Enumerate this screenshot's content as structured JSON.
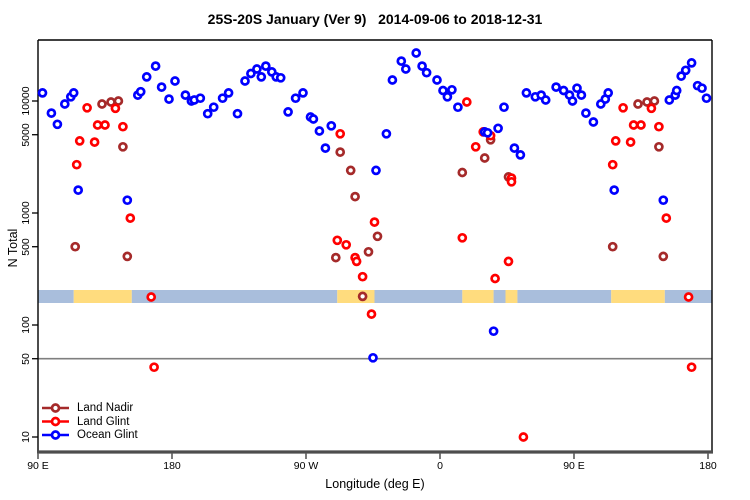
{
  "title": "25S-20S January (Ver 9)   2014-09-06 to 2018-12-31",
  "axes": {
    "x_label": "Longitude (deg E)",
    "y_label": "N Total",
    "x_ticks": [
      "90 E",
      "180",
      "90 W",
      "0",
      "90 E",
      "180"
    ],
    "y_ticks": [
      "10",
      "50",
      "100",
      "500",
      "1000",
      "5000",
      "10000"
    ]
  },
  "legend": {
    "items": [
      {
        "label": "Land Nadir",
        "color": "#A52A2A"
      },
      {
        "label": "Land Glint",
        "color": "#FF0000"
      },
      {
        "label": "Ocean Glint",
        "color": "#0000FF"
      }
    ]
  },
  "colors": {
    "background": "#ffffff",
    "box": "#000000",
    "bottom_axis": "#4d4d4d",
    "reference_line": "#7f7f7f",
    "band_ocean": "#A9BEDC",
    "band_land": "#FFDC7E"
  },
  "chart_data": {
    "type": "scatter",
    "title": "25S-20S January (Ver 9)   2014-09-06 to 2018-12-31",
    "xlabel": "Longitude (deg E)",
    "ylabel": "N Total",
    "x_axis": {
      "note": "x values are degrees along the axis starting at 90E and wrapping eastward; 0=90E, 90=180, 180=90W, 270=0, 360=90E, 450=180",
      "tick_positions": [
        0,
        90,
        180,
        270,
        360,
        450
      ],
      "tick_labels": [
        "90 E",
        "180",
        "90 W",
        "0",
        "90 E",
        "180"
      ],
      "range": [
        0,
        453
      ]
    },
    "y_axis": {
      "scale": "log",
      "ticks": [
        10,
        50,
        100,
        500,
        1000,
        5000,
        10000
      ],
      "range": [
        7,
        35000
      ]
    },
    "reference_line": {
      "y": 50,
      "color": "#7f7f7f"
    },
    "land_ocean_band": {
      "n_center": 175,
      "ocean_color": "#A9BEDC",
      "land_color": "#FFDC7E",
      "segments": [
        {
          "from": 0,
          "to": 24,
          "surface": "ocean"
        },
        {
          "from": 24,
          "to": 63,
          "surface": "land"
        },
        {
          "from": 63,
          "to": 201,
          "surface": "ocean"
        },
        {
          "from": 201,
          "to": 226,
          "surface": "land"
        },
        {
          "from": 226,
          "to": 285,
          "surface": "ocean"
        },
        {
          "from": 285,
          "to": 306,
          "surface": "land"
        },
        {
          "from": 306,
          "to": 314,
          "surface": "ocean"
        },
        {
          "from": 314,
          "to": 322,
          "surface": "land"
        },
        {
          "from": 322,
          "to": 385,
          "surface": "ocean"
        },
        {
          "from": 385,
          "to": 421,
          "surface": "land"
        },
        {
          "from": 421,
          "to": 453,
          "surface": "ocean"
        }
      ]
    },
    "series": [
      {
        "name": "Land Nadir",
        "color": "#A52A2A",
        "points": [
          [
            25,
            500
          ],
          [
            43,
            9400
          ],
          [
            49,
            9800
          ],
          [
            54,
            10000
          ],
          [
            57,
            3900
          ],
          [
            60,
            410
          ],
          [
            200,
            400
          ],
          [
            203,
            3500
          ],
          [
            210,
            2400
          ],
          [
            213,
            1400
          ],
          [
            218,
            180
          ],
          [
            222,
            450
          ],
          [
            228,
            620
          ],
          [
            285,
            2300
          ],
          [
            300,
            3100
          ],
          [
            304,
            4500
          ],
          [
            316,
            2100
          ],
          [
            386,
            500
          ],
          [
            403,
            9400
          ],
          [
            409,
            9800
          ],
          [
            414,
            10000
          ],
          [
            417,
            3900
          ],
          [
            420,
            410
          ]
        ]
      },
      {
        "name": "Land Glint",
        "color": "#FF0000",
        "points": [
          [
            26,
            2700
          ],
          [
            28,
            4400
          ],
          [
            33,
            8700
          ],
          [
            38,
            4300
          ],
          [
            40,
            6100
          ],
          [
            45,
            6100
          ],
          [
            52,
            8600
          ],
          [
            57,
            5900
          ],
          [
            62,
            900
          ],
          [
            76,
            178
          ],
          [
            78,
            42
          ],
          [
            201,
            570
          ],
          [
            203,
            5100
          ],
          [
            207,
            520
          ],
          [
            213,
            400
          ],
          [
            214,
            370
          ],
          [
            218,
            270
          ],
          [
            224,
            125
          ],
          [
            226,
            830
          ],
          [
            285,
            600
          ],
          [
            288,
            9800
          ],
          [
            294,
            3900
          ],
          [
            299,
            5300
          ],
          [
            304,
            4900
          ],
          [
            307,
            260
          ],
          [
            316,
            370
          ],
          [
            318,
            2050
          ],
          [
            318,
            1900
          ],
          [
            326,
            10
          ],
          [
            386,
            2700
          ],
          [
            388,
            4400
          ],
          [
            393,
            8700
          ],
          [
            398,
            4300
          ],
          [
            400,
            6100
          ],
          [
            405,
            6100
          ],
          [
            412,
            8600
          ],
          [
            417,
            5900
          ],
          [
            422,
            900
          ],
          [
            437,
            178
          ],
          [
            439,
            42
          ]
        ]
      },
      {
        "name": "Ocean Glint",
        "color": "#0000FF",
        "points": [
          [
            3,
            11800
          ],
          [
            9,
            7800
          ],
          [
            13,
            6200
          ],
          [
            18,
            9400
          ],
          [
            22,
            10900
          ],
          [
            24,
            11800
          ],
          [
            27,
            1600
          ],
          [
            60,
            1300
          ],
          [
            67,
            11300
          ],
          [
            69,
            12100
          ],
          [
            73,
            16400
          ],
          [
            79,
            20500
          ],
          [
            83,
            13300
          ],
          [
            88,
            10400
          ],
          [
            92,
            15100
          ],
          [
            99,
            11300
          ],
          [
            103,
            10000
          ],
          [
            105,
            10200
          ],
          [
            109,
            10600
          ],
          [
            114,
            7700
          ],
          [
            118,
            8800
          ],
          [
            124,
            10600
          ],
          [
            128,
            11800
          ],
          [
            134,
            7700
          ],
          [
            139,
            15100
          ],
          [
            143,
            17600
          ],
          [
            147,
            19300
          ],
          [
            150,
            16400
          ],
          [
            153,
            20500
          ],
          [
            157,
            18200
          ],
          [
            160,
            16400
          ],
          [
            163,
            16100
          ],
          [
            168,
            8000
          ],
          [
            173,
            10600
          ],
          [
            178,
            11800
          ],
          [
            183,
            7200
          ],
          [
            185,
            6900
          ],
          [
            189,
            5400
          ],
          [
            193,
            3800
          ],
          [
            197,
            6000
          ],
          [
            225,
            51
          ],
          [
            227,
            2400
          ],
          [
            234,
            5100
          ],
          [
            238,
            15400
          ],
          [
            244,
            22700
          ],
          [
            247,
            19300
          ],
          [
            254,
            26800
          ],
          [
            258,
            20500
          ],
          [
            261,
            17900
          ],
          [
            268,
            15400
          ],
          [
            272,
            12400
          ],
          [
            275,
            10900
          ],
          [
            278,
            12600
          ],
          [
            282,
            8800
          ],
          [
            300,
            5300
          ],
          [
            302,
            5200
          ],
          [
            306,
            88
          ],
          [
            309,
            5700
          ],
          [
            313,
            8800
          ],
          [
            320,
            3800
          ],
          [
            324,
            3300
          ],
          [
            328,
            11800
          ],
          [
            334,
            10900
          ],
          [
            338,
            11300
          ],
          [
            341,
            10200
          ],
          [
            348,
            13300
          ],
          [
            353,
            12400
          ],
          [
            357,
            11300
          ],
          [
            359,
            10000
          ],
          [
            362,
            13000
          ],
          [
            365,
            11300
          ],
          [
            368,
            7800
          ],
          [
            373,
            6500
          ],
          [
            378,
            9400
          ],
          [
            381,
            10400
          ],
          [
            383,
            11800
          ],
          [
            387,
            1600
          ],
          [
            420,
            1300
          ],
          [
            424,
            10200
          ],
          [
            428,
            11300
          ],
          [
            429,
            12400
          ],
          [
            432,
            16700
          ],
          [
            435,
            18800
          ],
          [
            439,
            21900
          ],
          [
            443,
            13700
          ],
          [
            446,
            13000
          ],
          [
            449,
            10600
          ]
        ]
      }
    ]
  }
}
